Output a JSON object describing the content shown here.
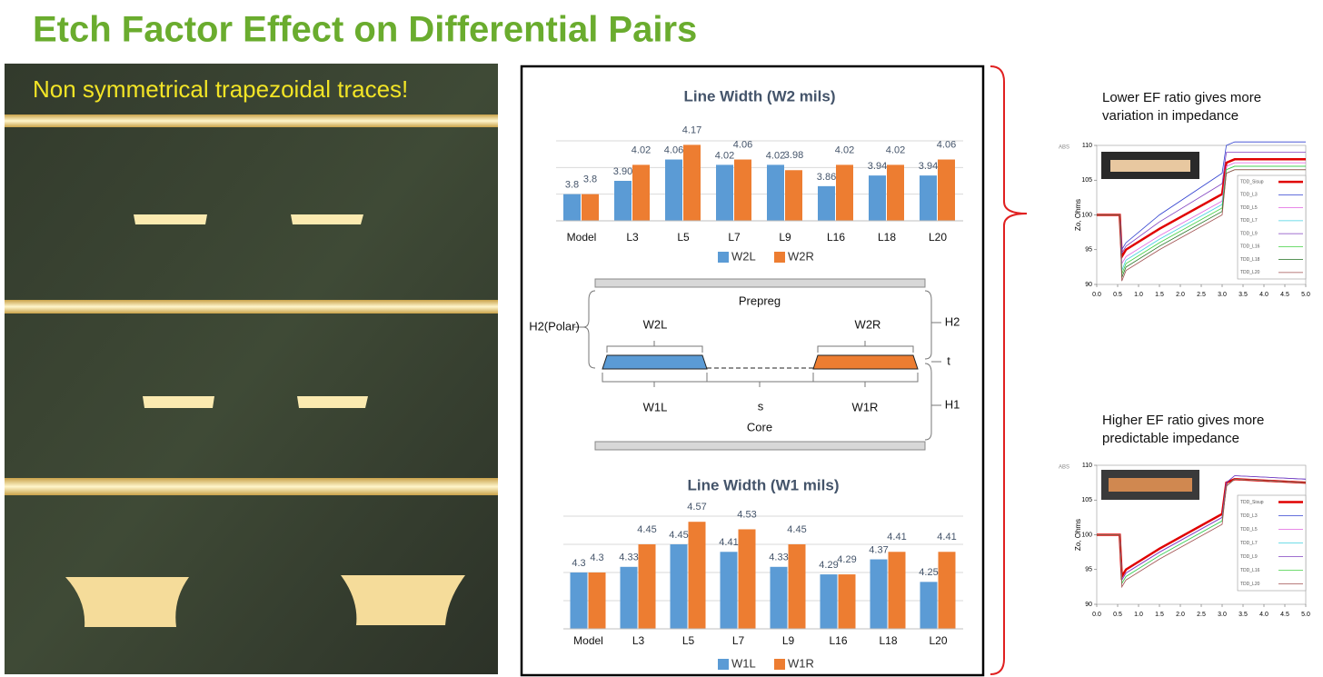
{
  "title": "Etch Factor Effect on Differential Pairs",
  "photo": {
    "caption": "Non symmetrical trapezoidal traces!"
  },
  "diagram": {
    "prepreg": "Prepreg",
    "h2_polar": "H2(Polar)",
    "w2l": "W2L",
    "w2r": "W2R",
    "h2": "H2",
    "t": "t",
    "w1l": "W1L",
    "s": "s",
    "w1r": "W1R",
    "h1": "H1",
    "core": "Core"
  },
  "chart_data": [
    {
      "type": "bar",
      "title": "Line Width  (W2 mils)",
      "categories": [
        "Model",
        "L3",
        "L5",
        "L7",
        "L9",
        "L16",
        "L18",
        "L20"
      ],
      "series": [
        {
          "name": "W2L",
          "color": "#5b9bd5",
          "values": [
            3.8,
            3.9,
            4.06,
            4.02,
            4.02,
            3.86,
            3.94,
            3.94
          ],
          "value_labels": [
            "3.8",
            "3.90",
            "4.06",
            "4.02",
            "4.02",
            "3.86",
            "3.94",
            "3.94"
          ]
        },
        {
          "name": "W2R",
          "color": "#ed7d31",
          "values": [
            3.8,
            4.02,
            4.17,
            4.06,
            3.98,
            4.02,
            4.02,
            4.06
          ]
        }
      ],
      "ylim": [
        3.6,
        4.2
      ],
      "yticks": [
        3.6,
        3.8,
        4.0,
        4.2
      ],
      "tick_labels": false,
      "grid": true,
      "legend": "bottom"
    },
    {
      "type": "bar",
      "title": "Line Width (W1 mils)",
      "categories": [
        "Model",
        "L3",
        "L5",
        "L7",
        "L9",
        "L16",
        "L18",
        "L20"
      ],
      "series": [
        {
          "name": "W1L",
          "color": "#5b9bd5",
          "values": [
            4.3,
            4.33,
            4.45,
            4.41,
            4.33,
            4.29,
            4.37,
            4.25
          ]
        },
        {
          "name": "W1R",
          "color": "#ed7d31",
          "values": [
            4.3,
            4.45,
            4.57,
            4.53,
            4.45,
            4.29,
            4.41,
            4.41
          ]
        }
      ],
      "ylim": [
        4.0,
        4.6
      ],
      "yticks": [
        4.0,
        4.15,
        4.3,
        4.45,
        4.6
      ],
      "tick_labels": false,
      "grid": true,
      "legend": "bottom"
    },
    {
      "type": "line",
      "title": "Lower EF ratio gives more variation in impedance",
      "ylabel": "Zo, Ohms",
      "corner_label": "ABS",
      "x": [
        0,
        0.55,
        0.6,
        0.7,
        1.5,
        3.0,
        3.1,
        3.3,
        5.0
      ],
      "series": [
        {
          "name": "TDD_Sisup",
          "color": "#e00000",
          "values": [
            100,
            100,
            94,
            95,
            98,
            103,
            107.5,
            108,
            108
          ]
        },
        {
          "name": "TDD_L3",
          "color": "#3040d0",
          "values": [
            100,
            100,
            95,
            96,
            100,
            106,
            110,
            110.5,
            110.5
          ]
        },
        {
          "name": "TDD_L5",
          "color": "#e060e0",
          "values": [
            100,
            100,
            93,
            94,
            97,
            102,
            107,
            107.5,
            107.5
          ]
        },
        {
          "name": "TDD_L7",
          "color": "#40d0e0",
          "values": [
            100,
            100,
            92,
            93.5,
            96.5,
            101.5,
            106.5,
            107,
            107
          ]
        },
        {
          "name": "TDD_L9",
          "color": "#8040c0",
          "values": [
            100,
            100,
            94.5,
            95.5,
            99,
            104.5,
            109,
            109,
            109
          ]
        },
        {
          "name": "TDD_L16",
          "color": "#40d040",
          "values": [
            100,
            100,
            91.5,
            93,
            96,
            101,
            106.5,
            107,
            107
          ]
        },
        {
          "name": "TDD_L18",
          "color": "#207020",
          "values": [
            100,
            100,
            91,
            92.5,
            95.5,
            100.5,
            106,
            106.5,
            106.5
          ]
        },
        {
          "name": "TDD_L20",
          "color": "#a05050",
          "values": [
            100,
            100,
            90.5,
            92,
            95,
            100,
            106,
            106.5,
            106.5
          ]
        }
      ],
      "xlim": [
        0,
        5
      ],
      "xticks": [
        {
          "value": 0,
          "label": "0.0"
        },
        0.5,
        {
          "value": 1,
          "label": "1.0"
        },
        1.5,
        {
          "value": 2,
          "label": "2.0"
        },
        2.5,
        {
          "value": 3,
          "label": "3.0"
        },
        3.5,
        {
          "value": 4,
          "label": "4.0"
        },
        4.5,
        {
          "value": 5,
          "label": "5.0"
        }
      ],
      "ylim": [
        90,
        110
      ],
      "yticks": [
        90,
        95,
        100,
        105,
        110
      ],
      "grid": false,
      "legend": "right"
    },
    {
      "type": "line",
      "title": "Higher EF ratio gives more predictable impedance",
      "ylabel": "Zo, Ohms",
      "corner_label": "ABS",
      "x": [
        0,
        0.55,
        0.6,
        0.7,
        1.5,
        3.0,
        3.1,
        3.3,
        5.0
      ],
      "series": [
        {
          "name": "TDD_Sisup",
          "color": "#e00000",
          "values": [
            100,
            100,
            94,
            95,
            98,
            103,
            107.5,
            108,
            107.5
          ]
        },
        {
          "name": "TDD_L3",
          "color": "#3040d0",
          "values": [
            100,
            100,
            93.5,
            94.5,
            97.5,
            102.5,
            107.5,
            108.5,
            108
          ]
        },
        {
          "name": "TDD_L5",
          "color": "#e060e0",
          "values": [
            100,
            100,
            93.5,
            94.5,
            97.5,
            102.5,
            107,
            108,
            107.5
          ]
        },
        {
          "name": "TDD_L7",
          "color": "#40d0e0",
          "values": [
            100,
            100,
            93,
            94,
            97,
            102,
            107,
            108,
            107.5
          ]
        },
        {
          "name": "TDD_L9",
          "color": "#8040c0",
          "values": [
            100,
            100,
            93.5,
            94.5,
            97.5,
            102.5,
            107.5,
            108.5,
            108
          ]
        },
        {
          "name": "TDD_L16",
          "color": "#40d040",
          "values": [
            100,
            100,
            93,
            94,
            97,
            102,
            107,
            108,
            107.5
          ]
        },
        {
          "name": "TDD_L20",
          "color": "#a05050",
          "values": [
            100,
            100,
            92.5,
            93.5,
            96.5,
            101.5,
            107,
            108,
            107.5
          ]
        }
      ],
      "xlim": [
        0,
        5
      ],
      "xticks": [
        {
          "value": 0,
          "label": "0.0"
        },
        0.5,
        {
          "value": 1,
          "label": "1.0"
        },
        1.5,
        {
          "value": 2,
          "label": "2.0"
        },
        2.5,
        {
          "value": 3,
          "label": "3.0"
        },
        3.5,
        {
          "value": 4,
          "label": "4.0"
        },
        4.5,
        {
          "value": 5,
          "label": "5.0"
        }
      ],
      "ylim": [
        90,
        110
      ],
      "yticks": [
        90,
        95,
        100,
        105,
        110
      ],
      "grid": false,
      "legend": "right"
    }
  ]
}
